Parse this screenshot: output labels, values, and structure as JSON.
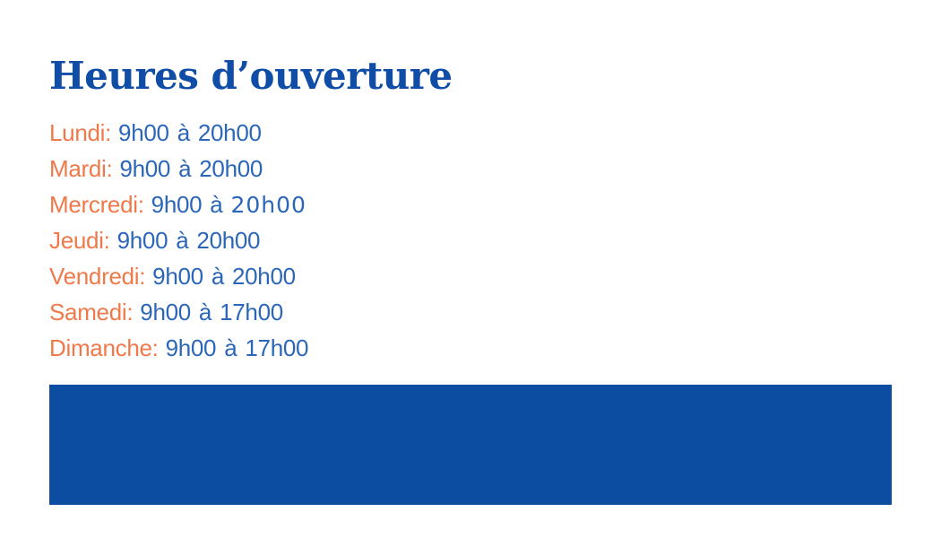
{
  "title": "Heures d’ouverture",
  "schedule": {
    "rows": [
      {
        "day": "Lundi:",
        "open": "9h00",
        "conj": "à",
        "close": "20h00"
      },
      {
        "day": "Mardi:",
        "open": "9h00",
        "conj": "à",
        "close": "20h00"
      },
      {
        "day": "Mercredi:",
        "open": "9h00",
        "conj": "à",
        "close": "20h00",
        "variant": "round-o"
      },
      {
        "day": "Jeudi:",
        "open": "9h00",
        "conj": "à",
        "close": "20h00"
      },
      {
        "day": "Vendredi:",
        "open": "9h00",
        "conj": "à",
        "close": "20h00"
      },
      {
        "day": "Samedi:",
        "open": "9h00",
        "conj": "à",
        "close": "17h00"
      },
      {
        "day": "Dimanche:",
        "open": "9h00",
        "conj": "à",
        "close": "17h00"
      }
    ]
  },
  "colors": {
    "background": "#ffffff",
    "title": "#0f4da6",
    "day_label": "#f0794a",
    "hours": "#2b66b8",
    "banner": "#0c4da2"
  }
}
